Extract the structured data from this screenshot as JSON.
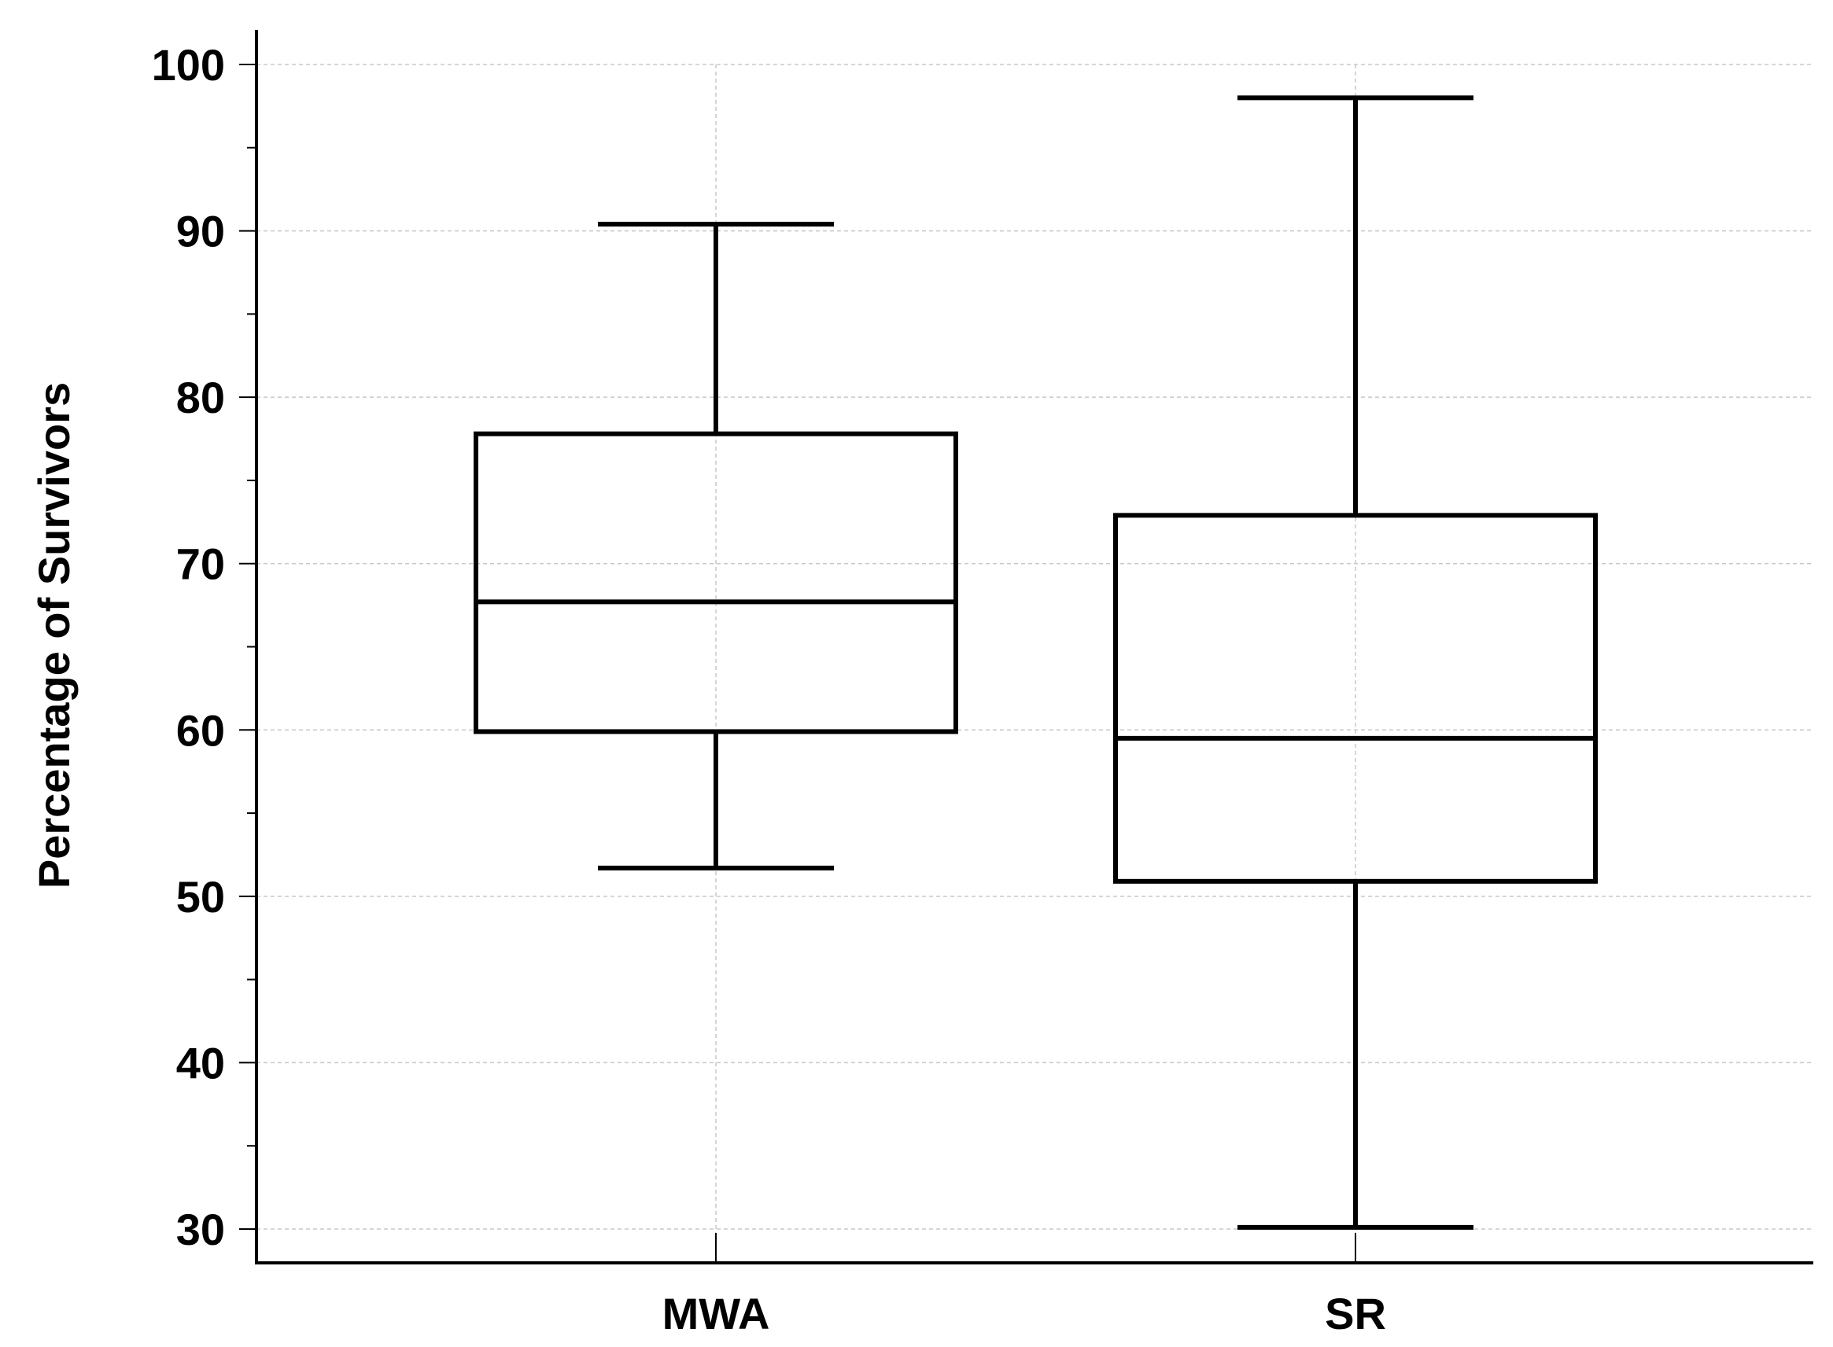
{
  "chart_data": {
    "type": "box",
    "title": "",
    "xlabel": "",
    "ylabel": "Percentage of Survivors",
    "ylim": [
      26,
      102
    ],
    "yticks": [
      30,
      40,
      50,
      60,
      70,
      80,
      90,
      100
    ],
    "minor_ticks": [
      35,
      45,
      55,
      65,
      75,
      85,
      95
    ],
    "grid": true,
    "categories": [
      "MWA",
      "SR"
    ],
    "series": [
      {
        "category": "MWA",
        "min": 51.7,
        "q1": 59.9,
        "median": 67.7,
        "q3": 77.8,
        "max": 90.4
      },
      {
        "category": "SR",
        "min": 30.1,
        "q1": 50.9,
        "median": 59.5,
        "q3": 72.9,
        "max": 98.0
      }
    ],
    "colors": {
      "box_stroke": "#000000",
      "grid": "#c8c8c8",
      "background": "#ffffff"
    }
  }
}
